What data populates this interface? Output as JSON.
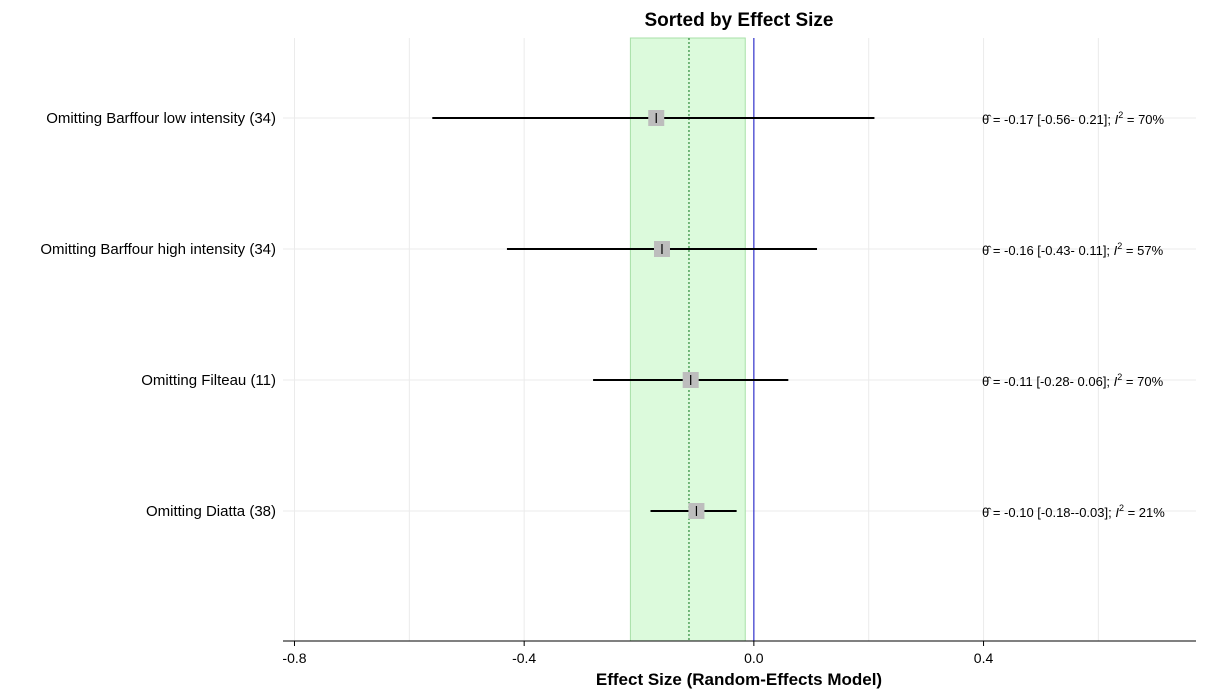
{
  "chart_data": {
    "type": "forest",
    "title": "Sorted by Effect Size",
    "xlabel": "Effect Size (Random-Effects Model)",
    "ylabel": "",
    "xlim": [
      -0.82,
      0.77
    ],
    "x_ticks": [
      -0.8,
      -0.4,
      0.0,
      0.4
    ],
    "x_tick_labels": [
      "-0.8",
      "-0.4",
      "0.0",
      "0.4"
    ],
    "x_gridlines": [
      -0.8,
      -0.6,
      -0.4,
      -0.2,
      0.0,
      0.2,
      0.4,
      0.6
    ],
    "grid": true,
    "pooled_estimate": -0.113,
    "pooled_ci": [
      -0.215,
      -0.015
    ],
    "null_line": 0.0,
    "colors": {
      "ci_band": "#dcfadc",
      "ci_band_edge": "#a8e0a8",
      "pooled_line": "#2e8b3a",
      "null_line": "#3333cc",
      "marker": "#bdbdbd",
      "line": "#000000",
      "grid": "#ebebeb"
    },
    "rows": [
      {
        "label": "Omitting Barffour low intensity (34)",
        "estimate": -0.17,
        "lower": -0.56,
        "upper": 0.21,
        "annotation_prefix": " = -0.17 [-0.56- 0.21]; ",
        "annotation_suffix": " = 70%"
      },
      {
        "label": "Omitting Barffour high intensity  (34)",
        "estimate": -0.16,
        "lower": -0.43,
        "upper": 0.11,
        "annotation_prefix": " = -0.16 [-0.43- 0.11]; ",
        "annotation_suffix": " = 57%"
      },
      {
        "label": "Omitting Filteau (11)",
        "estimate": -0.11,
        "lower": -0.28,
        "upper": 0.06,
        "annotation_prefix": " = -0.11 [-0.28- 0.06]; ",
        "annotation_suffix": " = 70%"
      },
      {
        "label": "Omitting Diatta (38)",
        "estimate": -0.1,
        "lower": -0.18,
        "upper": -0.03,
        "annotation_prefix": " = -0.10 [-0.18--0.03]; ",
        "annotation_suffix": " = 21%"
      }
    ],
    "annotation_symbol": "θ̂",
    "annotation_stat": "I",
    "annotation_stat_sup": "2"
  }
}
